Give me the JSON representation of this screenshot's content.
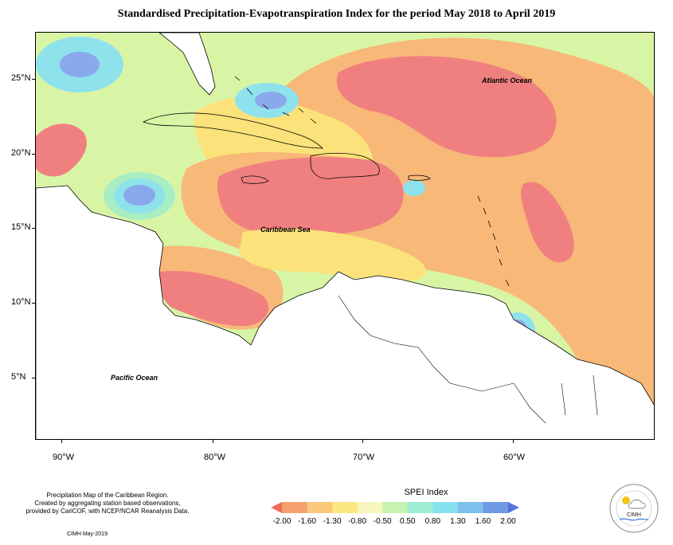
{
  "title": "Standardised Precipitation-Evapotranspiration Index for the period May 2018 to April 2019",
  "map": {
    "ocean_labels": {
      "atlantic": "Atlantic Ocean",
      "caribbean": "Caribbean Sea",
      "pacific": "Pacific Ocean"
    },
    "latitudes": [
      "25°N",
      "20°N",
      "15°N",
      "10°N",
      "5°N"
    ],
    "longitudes": [
      "90°W",
      "80°W",
      "70°W",
      "60°W"
    ],
    "colors": {
      "very_dry": "#f08080",
      "dry": "#f8b878",
      "moderately_dry": "#fbe27a",
      "near_normal": "#d8f5a6",
      "moderately_wet": "#a8eec2",
      "wet": "#8ee2ec",
      "very_wet": "#8aa8ec"
    }
  },
  "credits": {
    "line1": "Precipitation Map of the Caribbean Region.",
    "line2": "Created by aggregating station based observations,",
    "line3": "provided by CariCOF, with NCEP/NCAR Reanalysis Data.",
    "date": "CIMH May-2019"
  },
  "legend": {
    "title": "SPEI Index",
    "labels": [
      "-2.00",
      "-1.60",
      "-1.30",
      "-0.80",
      "-0.50",
      "0.50",
      "0.80",
      "1.30",
      "1.60",
      "2.00"
    ],
    "colors": [
      "#f06a5c",
      "#f6a070",
      "#f9c87a",
      "#fbe880",
      "#f8f6bc",
      "#c6f2b2",
      "#9eeed6",
      "#86e2f0",
      "#7ec0ec",
      "#6e9ae6",
      "#5a72dc"
    ]
  },
  "logo": {
    "text": "CIMH"
  }
}
